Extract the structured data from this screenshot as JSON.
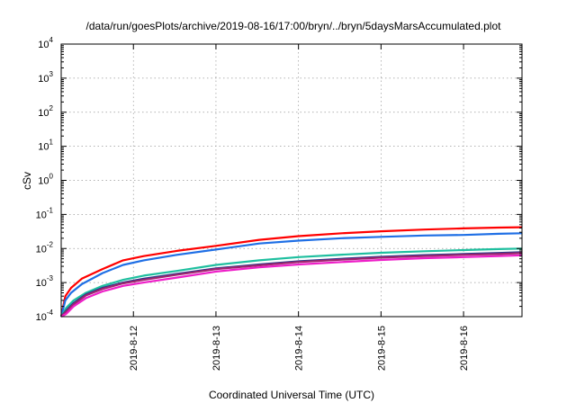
{
  "chart_data": {
    "type": "line",
    "title": "/data/run/goesPlots/archive/2019-08-16/17:00/bryn/../bryn/5daysMarsAccumulated.plot",
    "xlabel": "Coordinated Universal Time (UTC)",
    "ylabel": "cSv",
    "scale": {
      "y": "log"
    },
    "grid": true,
    "legend": "none",
    "x_domain": [
      "2019-08-11T03:00",
      "2019-08-16T17:00"
    ],
    "xlim_days": [
      0,
      5.583
    ],
    "ylim": [
      0.0001,
      10000
    ],
    "x_ticks": [
      {
        "label": "2019-8-12",
        "day": 0.875
      },
      {
        "label": "2019-8-13",
        "day": 1.875
      },
      {
        "label": "2019-8-14",
        "day": 2.875
      },
      {
        "label": "2019-8-15",
        "day": 3.875
      },
      {
        "label": "2019-8-16",
        "day": 4.875
      }
    ],
    "y_ticks": [
      {
        "mantissa": "10",
        "exp": "-4",
        "value": 0.0001
      },
      {
        "mantissa": "10",
        "exp": "-3",
        "value": 0.001
      },
      {
        "mantissa": "10",
        "exp": "-2",
        "value": 0.01
      },
      {
        "mantissa": "10",
        "exp": "-1",
        "value": 0.1
      },
      {
        "mantissa": "10",
        "exp": "0",
        "value": 1
      },
      {
        "mantissa": "10",
        "exp": "1",
        "value": 10
      },
      {
        "mantissa": "10",
        "exp": "2",
        "value": 100
      },
      {
        "mantissa": "10",
        "exp": "3",
        "value": 1000
      },
      {
        "mantissa": "10",
        "exp": "4",
        "value": 10000
      }
    ],
    "series": [
      {
        "color": "#ff0000",
        "width": 2.2,
        "x": [
          0.0,
          0.05,
          0.12,
          0.25,
          0.5,
          0.75,
          1.0,
          1.4,
          1.875,
          2.4,
          2.875,
          3.4,
          3.875,
          4.4,
          4.875,
          5.3,
          5.583
        ],
        "y": [
          0.0001,
          0.0004,
          0.0007,
          0.0013,
          0.0025,
          0.0045,
          0.006,
          0.0085,
          0.012,
          0.018,
          0.023,
          0.028,
          0.032,
          0.036,
          0.039,
          0.041,
          0.042
        ]
      },
      {
        "color": "#1f6fe5",
        "width": 2.2,
        "x": [
          0.0,
          0.05,
          0.12,
          0.25,
          0.5,
          0.75,
          1.0,
          1.4,
          1.875,
          2.4,
          2.875,
          3.4,
          3.875,
          4.4,
          4.875,
          5.3,
          5.583
        ],
        "y": [
          0.0001,
          0.0003,
          0.0005,
          0.0009,
          0.0019,
          0.0033,
          0.0045,
          0.0065,
          0.0093,
          0.014,
          0.017,
          0.02,
          0.022,
          0.024,
          0.025,
          0.027,
          0.028
        ]
      },
      {
        "color": "#1fbf9f",
        "width": 2.2,
        "x": [
          0.0,
          0.06,
          0.15,
          0.3,
          0.5,
          0.75,
          1.0,
          1.4,
          1.875,
          2.4,
          2.875,
          3.4,
          3.875,
          4.4,
          4.875,
          5.3,
          5.583
        ],
        "y": [
          0.0001,
          0.00018,
          0.0003,
          0.0005,
          0.0008,
          0.0012,
          0.0016,
          0.0022,
          0.0033,
          0.0045,
          0.0056,
          0.0066,
          0.0075,
          0.0083,
          0.009,
          0.0096,
          0.01
        ]
      },
      {
        "color": "#2c3a8c",
        "width": 2.2,
        "x": [
          0.0,
          0.06,
          0.15,
          0.3,
          0.5,
          0.75,
          1.0,
          1.4,
          1.875,
          2.4,
          2.875,
          3.4,
          3.875,
          4.4,
          4.875,
          5.3,
          5.583
        ],
        "y": [
          0.0001,
          0.00015,
          0.00025,
          0.00045,
          0.0007,
          0.001,
          0.0013,
          0.0018,
          0.0026,
          0.0034,
          0.0042,
          0.005,
          0.0057,
          0.0064,
          0.0069,
          0.0074,
          0.0078
        ]
      },
      {
        "color": "#a0246e",
        "width": 2.2,
        "x": [
          0.0,
          0.06,
          0.15,
          0.3,
          0.5,
          0.75,
          1.0,
          1.4,
          1.875,
          2.4,
          2.875,
          3.4,
          3.875,
          4.4,
          4.875,
          5.3,
          5.583
        ],
        "y": [
          0.0001,
          0.00014,
          0.00023,
          0.00042,
          0.00065,
          0.00095,
          0.0012,
          0.0017,
          0.0025,
          0.0032,
          0.004,
          0.0047,
          0.0054,
          0.006,
          0.0065,
          0.0069,
          0.0073
        ]
      },
      {
        "color": "#ee1fc8",
        "width": 2.2,
        "x": [
          0.0,
          0.06,
          0.15,
          0.3,
          0.5,
          0.75,
          1.0,
          1.4,
          1.875,
          2.4,
          2.875,
          3.4,
          3.875,
          4.4,
          4.875,
          5.3,
          5.583
        ],
        "y": [
          0.0001,
          0.00012,
          0.0002,
          0.00035,
          0.00055,
          0.0008,
          0.001,
          0.0014,
          0.0021,
          0.0028,
          0.0034,
          0.004,
          0.0046,
          0.0052,
          0.0056,
          0.006,
          0.0063
        ]
      }
    ]
  }
}
